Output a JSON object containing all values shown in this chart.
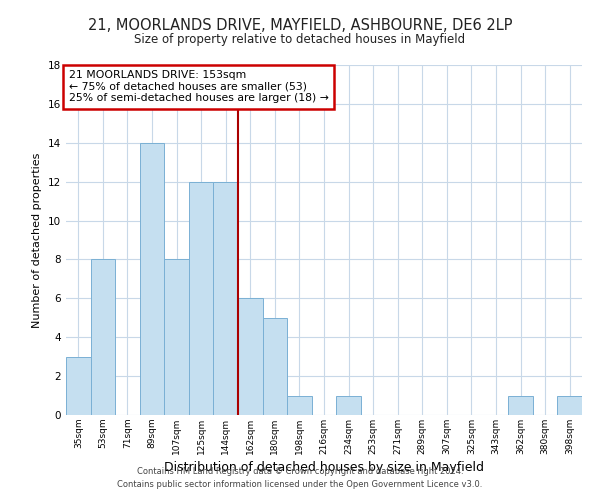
{
  "title": "21, MOORLANDS DRIVE, MAYFIELD, ASHBOURNE, DE6 2LP",
  "subtitle": "Size of property relative to detached houses in Mayfield",
  "xlabel": "Distribution of detached houses by size in Mayfield",
  "ylabel": "Number of detached properties",
  "bin_labels": [
    "35sqm",
    "53sqm",
    "71sqm",
    "89sqm",
    "107sqm",
    "125sqm",
    "144sqm",
    "162sqm",
    "180sqm",
    "198sqm",
    "216sqm",
    "234sqm",
    "253sqm",
    "271sqm",
    "289sqm",
    "307sqm",
    "325sqm",
    "343sqm",
    "362sqm",
    "380sqm",
    "398sqm"
  ],
  "bin_counts": [
    3,
    8,
    0,
    14,
    8,
    12,
    12,
    6,
    5,
    1,
    0,
    1,
    0,
    0,
    0,
    0,
    0,
    0,
    1,
    0,
    1
  ],
  "bar_color": "#c5dff0",
  "bar_edge_color": "#7ab0d4",
  "vline_x_index": 6.5,
  "vline_color": "#aa0000",
  "annotation_title": "21 MOORLANDS DRIVE: 153sqm",
  "annotation_line1": "← 75% of detached houses are smaller (53)",
  "annotation_line2": "25% of semi-detached houses are larger (18) →",
  "annotation_box_color": "#cc0000",
  "ylim": [
    0,
    18
  ],
  "yticks": [
    0,
    2,
    4,
    6,
    8,
    10,
    12,
    14,
    16,
    18
  ],
  "footer1": "Contains HM Land Registry data © Crown copyright and database right 2024.",
  "footer2": "Contains public sector information licensed under the Open Government Licence v3.0.",
  "bg_color": "#ffffff",
  "grid_color": "#c8d8e8"
}
